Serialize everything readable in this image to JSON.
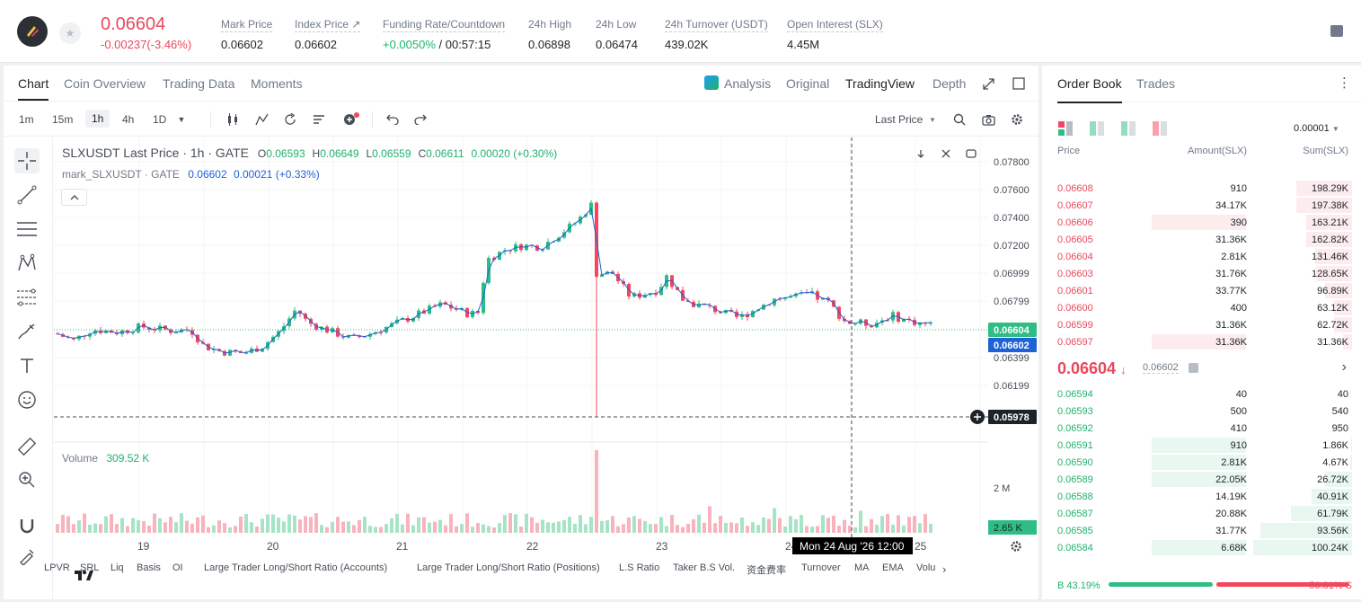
{
  "header": {
    "last_price": "0.06604",
    "change": "-0.00237(-3.46%)",
    "stats": [
      {
        "label": "Mark Price",
        "value": "0.06602"
      },
      {
        "label": "Index Price ↗",
        "value": "0.06602"
      },
      {
        "label": "Funding Rate/Countdown",
        "value_green": "+0.0050%",
        "value": " / 00:57:15"
      },
      {
        "label": "24h High",
        "value": "0.06898"
      },
      {
        "label": "24h Low",
        "value": "0.06474"
      },
      {
        "label": "24h Turnover (USDT)",
        "value": "439.02K"
      },
      {
        "label": "Open Interest (SLX)",
        "value": "4.45M"
      }
    ]
  },
  "chart_tabs": [
    "Chart",
    "Coin Overview",
    "Trading Data",
    "Moments"
  ],
  "view_tabs": [
    "Analysis",
    "Original",
    "TradingView",
    "Depth"
  ],
  "timeframes": [
    "1m",
    "15m",
    "1h",
    "4h",
    "1D"
  ],
  "toolbar": {
    "price_type": "Last Price"
  },
  "legend": {
    "symbol": "SLXUSDT Last Price · 1h · GATE",
    "o_label": "O",
    "o": "0.06593",
    "h_label": "H",
    "h": "0.06649",
    "l_label": "L",
    "l": "0.06559",
    "c_label": "C",
    "c": "0.06611",
    "chg": "0.00020 (+0.30%)",
    "mark": "mark_SLXUSDT · GATE",
    "mark_v": "0.06602",
    "mark_chg": "0.00021 (+0.33%)",
    "volume_label": "Volume",
    "volume_v": "309.52 K"
  },
  "axis": {
    "price_ticks": [
      "0.07800",
      "0.07600",
      "0.07400",
      "0.07200",
      "0.06999",
      "0.06799",
      "0.06399",
      "0.06199"
    ],
    "last_tag": "0.06604",
    "mark_tag": "0.06602",
    "cursor_tag": "0.05978",
    "vol_tick": "2 M",
    "vol_tag": "2.65 K",
    "x_ticks": [
      "19",
      "20",
      "21",
      "22",
      "23",
      "24",
      "25"
    ],
    "crosshair_date": "Mon 24 Aug '26",
    "crosshair_time": "12:00"
  },
  "indicators": [
    "LPVR",
    "SRL",
    "Liq",
    "Basis",
    "OI",
    "Large Trader Long/Short Ratio (Accounts)",
    "Large Trader Long/Short Ratio (Positions)",
    "L.S Ratio",
    "Taker B.S Vol.",
    "资金费率",
    "Turnover",
    "MA",
    "EMA",
    "Volu"
  ],
  "orderbook": {
    "tabs": [
      "Order Book",
      "Trades"
    ],
    "precision": "0.00001",
    "columns": [
      "Price",
      "Amount(SLX)",
      "Sum(SLX)"
    ],
    "asks": [
      {
        "price": "0.06608",
        "amount": "910",
        "sum": "198.29K",
        "depth": 0.56,
        "own": 0
      },
      {
        "price": "0.06607",
        "amount": "34.17K",
        "sum": "197.38K",
        "depth": 0.56,
        "own": 0
      },
      {
        "price": "0.06606",
        "amount": "390",
        "sum": "163.21K",
        "depth": 0.46,
        "own": 0.34
      },
      {
        "price": "0.06605",
        "amount": "31.36K",
        "sum": "162.82K",
        "depth": 0.46,
        "own": 0
      },
      {
        "price": "0.06604",
        "amount": "2.81K",
        "sum": "131.46K",
        "depth": 0.37,
        "own": 0
      },
      {
        "price": "0.06603",
        "amount": "31.76K",
        "sum": "128.65K",
        "depth": 0.36,
        "own": 0
      },
      {
        "price": "0.06601",
        "amount": "33.77K",
        "sum": "96.89K",
        "depth": 0.27,
        "own": 0
      },
      {
        "price": "0.06600",
        "amount": "400",
        "sum": "63.12K",
        "depth": 0.18,
        "own": 0
      },
      {
        "price": "0.06599",
        "amount": "31.36K",
        "sum": "62.72K",
        "depth": 0.18,
        "own": 0
      },
      {
        "price": "0.06597",
        "amount": "31.36K",
        "sum": "31.36K",
        "depth": 0.09,
        "own": 0.34
      }
    ],
    "mid_price": "0.06604",
    "mid_arrow": "↓",
    "mid_mark": "0.06602",
    "bids": [
      {
        "price": "0.06594",
        "amount": "40",
        "sum": "40",
        "depth": 0.0,
        "own": 0
      },
      {
        "price": "0.06593",
        "amount": "500",
        "sum": "540",
        "depth": 0.0,
        "own": 0
      },
      {
        "price": "0.06592",
        "amount": "410",
        "sum": "950",
        "depth": 0.0,
        "own": 0
      },
      {
        "price": "0.06591",
        "amount": "910",
        "sum": "1.86K",
        "depth": 0.01,
        "own": 0.34
      },
      {
        "price": "0.06590",
        "amount": "2.81K",
        "sum": "4.67K",
        "depth": 0.02,
        "own": 0.34
      },
      {
        "price": "0.06589",
        "amount": "22.05K",
        "sum": "26.72K",
        "depth": 0.27,
        "own": 0.34
      },
      {
        "price": "0.06588",
        "amount": "14.19K",
        "sum": "40.91K",
        "depth": 0.41,
        "own": 0
      },
      {
        "price": "0.06587",
        "amount": "20.88K",
        "sum": "61.79K",
        "depth": 0.62,
        "own": 0
      },
      {
        "price": "0.06585",
        "amount": "31.77K",
        "sum": "93.56K",
        "depth": 0.93,
        "own": 0
      },
      {
        "price": "0.06584",
        "amount": "6.68K",
        "sum": "100.24K",
        "depth": 1.0,
        "own": 0.34
      }
    ],
    "buy_label": "B",
    "buy_pct": "43.19%",
    "sell_label": "S",
    "sell_pct": "56.81%",
    "buy_ratio": 0.4319
  },
  "colors": {
    "up": "#2ebd85",
    "down": "#f6465d",
    "mark": "#1e62d6",
    "accent": "#e8485c"
  }
}
